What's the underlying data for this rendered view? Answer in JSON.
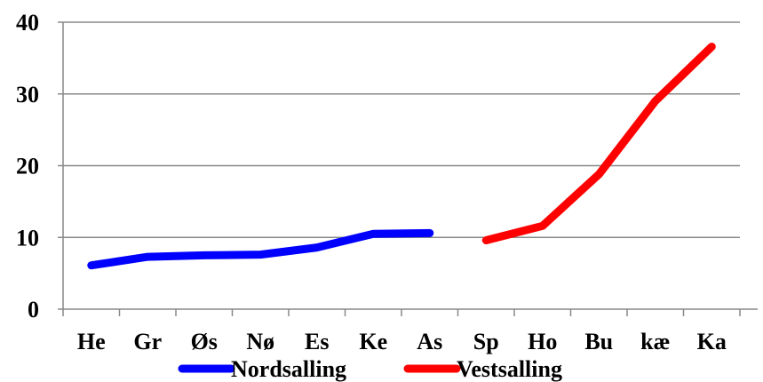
{
  "chart_data": {
    "type": "line",
    "categories": [
      "He",
      "Gr",
      "Øs",
      "Nø",
      "Es",
      "Ke",
      "As",
      "Sp",
      "Ho",
      "Bu",
      "kæ",
      "Ka"
    ],
    "ylim": [
      0,
      40
    ],
    "yticks": [
      0,
      10,
      20,
      30,
      40
    ],
    "grid": "horizontal",
    "legend_position": "bottom",
    "series": [
      {
        "name": "Nordsalling",
        "color": "#0000ff",
        "values": [
          6.1,
          7.3,
          7.5,
          7.6,
          8.6,
          10.5,
          10.6,
          null,
          null,
          null,
          null,
          null
        ]
      },
      {
        "name": "Vestsalling",
        "color": "#ff0000",
        "values": [
          null,
          null,
          null,
          null,
          null,
          null,
          null,
          9.6,
          11.6,
          18.8,
          29.0,
          36.6
        ]
      }
    ]
  }
}
